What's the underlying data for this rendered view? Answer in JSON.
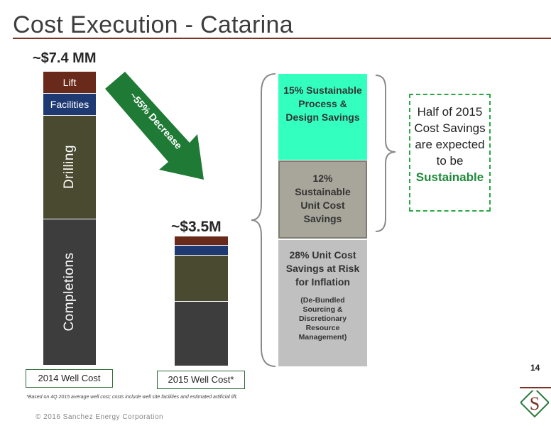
{
  "title": "Cost Execution - Catarina",
  "bar_2014": {
    "total_label": "~$7.4 MM",
    "x_label": "2014 Well Cost",
    "segments": [
      {
        "name": "Lift",
        "color": "#6a2a1b"
      },
      {
        "name": "Facilities",
        "color": "#1f3a73"
      },
      {
        "name": "Drilling",
        "color": "#4a4a30"
      },
      {
        "name": "Completions",
        "color": "#3d3d3d"
      }
    ]
  },
  "bar_2015": {
    "total_label": "~$3.5M",
    "x_label": "2015 Well Cost*"
  },
  "arrow_label": "~55% Decrease",
  "breakdown": {
    "sustainable_process": "15% Sustainable Process & Design Savings",
    "sustainable_unit": "12% Sustainable Unit Cost Savings",
    "at_risk_title": "28% Unit Cost Savings at Risk for Inflation",
    "at_risk_detail": "(De-Bundled Sourcing & Discretionary Resource Management)"
  },
  "callout": {
    "text_main": "Half of 2015 Cost Savings are expected to be",
    "text_emphasis": "Sustainable"
  },
  "page_number": "14",
  "footnote": "*Based on 4Q 2015 average well cost; costs include well site facilities and estimated artificial lift.",
  "copyright": "© 2016 Sanchez Energy Corporation",
  "logo_letter": "S",
  "colors": {
    "accent_rule": "#7a3324",
    "arrow_green": "#1f7a35",
    "process_savings": "#33ffbf",
    "unit_savings": "#a8a59a",
    "at_risk": "#c0c0c0",
    "callout_border": "#2aa845",
    "sustainable_text": "#1f8a3a"
  }
}
